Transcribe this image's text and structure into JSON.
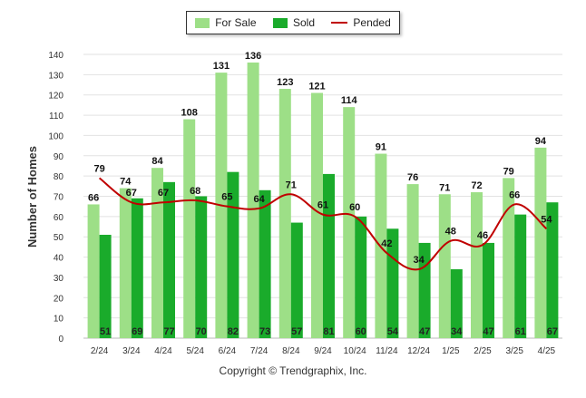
{
  "chart_data": {
    "type": "bar",
    "categories": [
      "2/24",
      "3/24",
      "4/24",
      "5/24",
      "6/24",
      "7/24",
      "8/24",
      "9/24",
      "10/24",
      "11/24",
      "12/24",
      "1/25",
      "2/25",
      "3/25",
      "4/25"
    ],
    "series": [
      {
        "name": "For Sale",
        "kind": "bar",
        "color": "#9ddf87",
        "values": [
          66,
          74,
          84,
          108,
          131,
          136,
          123,
          121,
          114,
          91,
          76,
          71,
          72,
          79,
          94
        ]
      },
      {
        "name": "Sold",
        "kind": "bar",
        "color": "#1aab2b",
        "values": [
          51,
          69,
          77,
          70,
          82,
          73,
          57,
          81,
          60,
          54,
          47,
          34,
          47,
          61,
          67
        ]
      },
      {
        "name": "Pended",
        "kind": "line",
        "color": "#c00000",
        "values": [
          79,
          67,
          67,
          68,
          65,
          64,
          71,
          61,
          60,
          42,
          34,
          48,
          46,
          66,
          54
        ]
      }
    ],
    "ylabel": "Number of Homes",
    "ylim": [
      0,
      140
    ],
    "yticks": [
      0,
      10,
      20,
      30,
      40,
      50,
      60,
      70,
      80,
      90,
      100,
      110,
      120,
      130,
      140
    ],
    "grid": true,
    "legend_position": "top-center"
  },
  "footer": {
    "copyright": "Copyright © Trendgraphix, Inc."
  }
}
